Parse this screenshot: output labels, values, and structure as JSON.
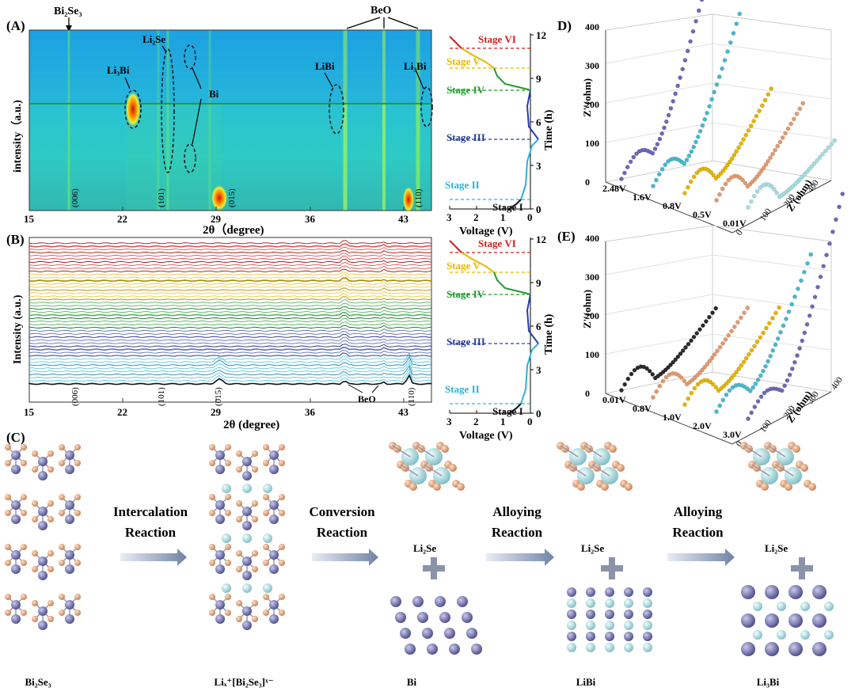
{
  "panel_labels": {
    "a": "(A)",
    "b": "(B)",
    "c": "(C)",
    "d": "D)",
    "e": "(E)"
  },
  "top_annotations": {
    "bi2se3": "Bi₂Se₃",
    "beo": "BeO"
  },
  "heatmap": {
    "ylabel": "intensity（a.u.)",
    "xlabel": "2θ（degree)",
    "xticks": [
      "15",
      "22",
      "29",
      "36",
      "43"
    ],
    "phase_labels": {
      "li3bi": "Li₃Bi",
      "li2se": "Li₂Se",
      "bi": "Bi",
      "libi": "LiBi",
      "li3bi_right": "Li₃Bi"
    },
    "hkl": [
      "(006)",
      "(101)",
      "(015)",
      "(110)"
    ]
  },
  "stacked": {
    "ylabel": "Intensity (a.u.)",
    "xlabel": "2θ (degree)",
    "xticks": [
      "15",
      "22",
      "29",
      "36",
      "43"
    ],
    "hkl": [
      "(006)",
      "(101)",
      "(015)",
      "(110)"
    ],
    "beo_label": "BeO"
  },
  "voltage_a": {
    "stages": [
      "Stage VI",
      "Stage V",
      "Stage IV",
      "Stage III",
      "Stage II",
      "Stage I"
    ],
    "time_label": "Time (h)",
    "voltage_label": "Voltage (V)",
    "time_ticks": [
      "0",
      "3",
      "6",
      "9",
      "12"
    ],
    "voltage_ticks": [
      "3",
      "2",
      "1",
      "0"
    ]
  },
  "voltage_b": {
    "stages": [
      "Stage VI",
      "Stage V",
      "Stage IV",
      "Stage III",
      "Stage II",
      "Stage I"
    ],
    "time_label": "Time (h)",
    "voltage_label": "Voltage (V)",
    "time_ticks": [
      "0",
      "3",
      "6",
      "9",
      "12"
    ],
    "voltage_ticks": [
      "3",
      "2",
      "1",
      "0"
    ]
  },
  "eis_d": {
    "zticks": [
      "0",
      "100",
      "200",
      "300",
      "400"
    ],
    "zlabel": "Z''(ohm)",
    "xlabel": "Z'(ohm)",
    "xticks": [
      "0",
      "100",
      "200",
      "400"
    ],
    "voltages": [
      "2.48V",
      "1.6V",
      "0.8V",
      "0.5V",
      "0.01V"
    ]
  },
  "eis_e": {
    "zticks": [
      "0",
      "100",
      "200",
      "300",
      "400"
    ],
    "zlabel": "Z''(ohm)",
    "xlabel": "Z'(ohm)",
    "xticks": [
      "0",
      "100",
      "200",
      "300",
      "400"
    ],
    "voltages": [
      "0.01V",
      "0.8V",
      "1.0V",
      "2.0V",
      "3.0V"
    ]
  },
  "mechanism": {
    "reactions": [
      "Intercalation\nReaction",
      "Conversion\nReaction",
      "Alloying\nReaction",
      "Alloying\nReaction"
    ],
    "phases": [
      "Bi₂Se₃",
      "Liₓ⁺[Bi₂Se₃]ˣ⁻",
      "Bi",
      "LiBi",
      "Li₃Bi"
    ],
    "li2se": "Li₂Se",
    "plus": "+"
  },
  "colors": {
    "stage_vi": "#d21e1e",
    "stage_v": "#e8b800",
    "stage_iv": "#1f9a2f",
    "stage_iii": "#2a3fa0",
    "stage_ii": "#2bb3d6",
    "stage_i": "#111111",
    "bi_atom": "#6f6fa8",
    "se_atom": "#e3a27a",
    "li_atom": "#a9dfe0",
    "arrow": "#7f93b8"
  }
}
